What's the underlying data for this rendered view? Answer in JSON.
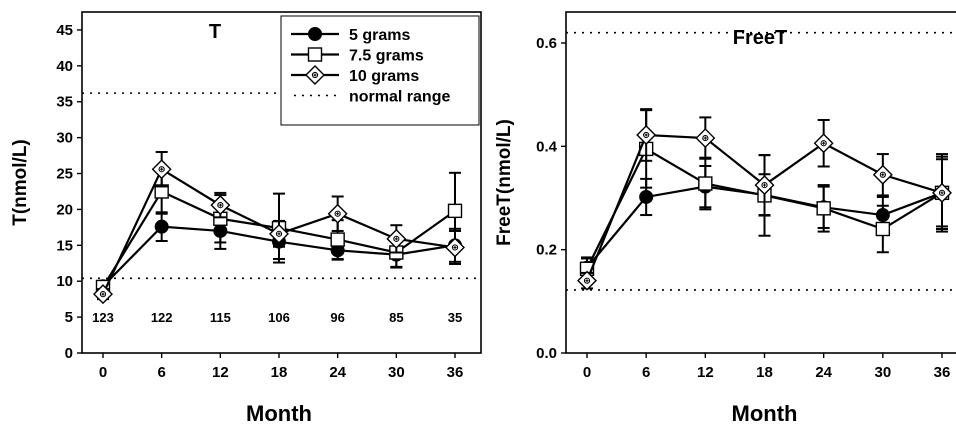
{
  "chart_data": [
    {
      "type": "line",
      "title": "T",
      "xlabel": "Month",
      "ylabel": "T(nmol/L)",
      "x": [
        0,
        6,
        12,
        18,
        24,
        30,
        36
      ],
      "xticks": [
        "0",
        "6",
        "12",
        "18",
        "24",
        "30",
        "36"
      ],
      "ylim": [
        0,
        47.5
      ],
      "yticks": [
        "0",
        "5",
        "10",
        "15",
        "20",
        "25",
        "30",
        "35",
        "40",
        "45"
      ],
      "normal_range": [
        10.4,
        36.2
      ],
      "sample_sizes": [
        "123",
        "122",
        "115",
        "106",
        "96",
        "85",
        "35"
      ],
      "legend": {
        "position": "top-right",
        "entries": [
          "5 grams",
          "7.5 grams",
          "10 grams",
          "normal range"
        ]
      },
      "series": [
        {
          "name": "5 grams",
          "marker": "filled-circle",
          "values": [
            9.3,
            17.6,
            17.0,
            15.5,
            14.3,
            13.7,
            15.0
          ],
          "errors": [
            0.7,
            2.0,
            2.5,
            2.4,
            1.3,
            1.8,
            2.3
          ]
        },
        {
          "name": "7.5 grams",
          "marker": "open-square",
          "values": [
            9.2,
            22.5,
            18.7,
            17.4,
            15.8,
            14.0,
            19.8
          ],
          "errors": [
            0.7,
            3.1,
            3.3,
            4.8,
            2.7,
            2.0,
            5.3
          ]
        },
        {
          "name": "10 grams",
          "marker": "diamond",
          "values": [
            8.2,
            25.6,
            20.6,
            16.6,
            19.4,
            15.9,
            14.7
          ],
          "errors": [
            0.7,
            2.4,
            1.7,
            1.8,
            2.4,
            1.9,
            2.3
          ]
        }
      ]
    },
    {
      "type": "line",
      "title": "FreeT",
      "xlabel": "Month",
      "ylabel": "FreeT(nmol/L)",
      "x": [
        0,
        6,
        12,
        18,
        24,
        30,
        36
      ],
      "xticks": [
        "0",
        "6",
        "12",
        "18",
        "24",
        "30",
        "36"
      ],
      "ylim": [
        0,
        0.66
      ],
      "yticks": [
        "0.0",
        "0.2",
        "0.4",
        "0.6"
      ],
      "normal_range": [
        0.122,
        0.62
      ],
      "series": [
        {
          "name": "5 grams",
          "marker": "filled-circle",
          "values": [
            0.165,
            0.302,
            0.322,
            0.306,
            0.282,
            0.267,
            0.31
          ],
          "errors": [
            0.02,
            0.035,
            0.04,
            0.04,
            0.04,
            0.035,
            0.065
          ]
        },
        {
          "name": "7.5 grams",
          "marker": "open-square",
          "values": [
            0.163,
            0.395,
            0.328,
            0.305,
            0.28,
            0.24,
            0.31
          ],
          "errors": [
            0.02,
            0.075,
            0.05,
            0.078,
            0.045,
            0.045,
            0.075
          ]
        },
        {
          "name": "10 grams",
          "marker": "diamond",
          "values": [
            0.14,
            0.422,
            0.416,
            0.325,
            0.406,
            0.345,
            0.31
          ],
          "errors": [
            0.015,
            0.05,
            0.04,
            0.058,
            0.045,
            0.04,
            0.07
          ]
        }
      ]
    }
  ]
}
